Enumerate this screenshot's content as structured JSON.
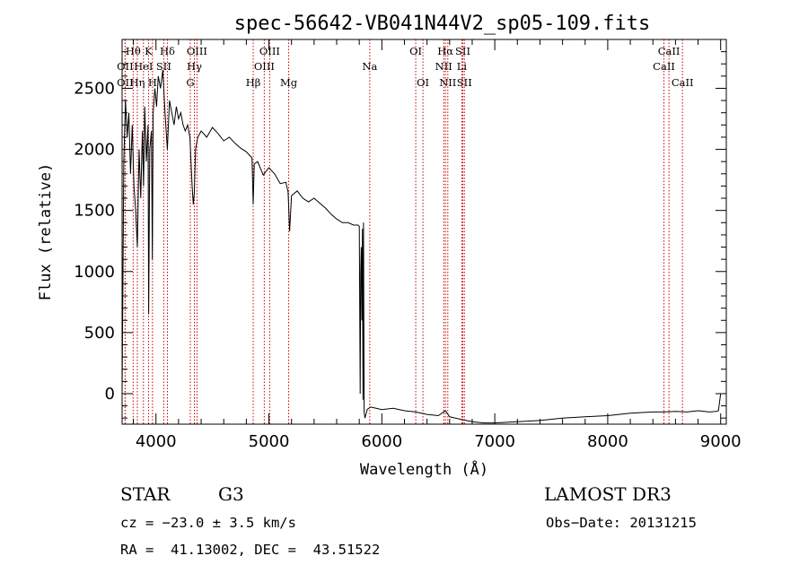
{
  "chart_data": {
    "type": "line",
    "title": "spec-56642-VB041N44V2_sp05-109.fits",
    "xlabel": "Wavelength (Å)",
    "ylabel": "Flux (relative)",
    "xlim": [
      3700,
      9050
    ],
    "ylim": [
      -250,
      2900
    ],
    "xticks": [
      4000,
      5000,
      6000,
      7000,
      8000,
      9000
    ],
    "yticks": [
      0,
      500,
      1000,
      1500,
      2000,
      2500
    ],
    "series": [
      {
        "name": "flux",
        "color": "#000000",
        "x": [
          3700,
          3715,
          3730,
          3745,
          3760,
          3775,
          3790,
          3805,
          3820,
          3835,
          3850,
          3865,
          3880,
          3890,
          3900,
          3915,
          3930,
          3935,
          3945,
          3960,
          3968,
          3975,
          3990,
          4005,
          4020,
          4040,
          4060,
          4080,
          4101,
          4120,
          4140,
          4160,
          4180,
          4200,
          4220,
          4240,
          4260,
          4280,
          4300,
          4320,
          4330,
          4340,
          4350,
          4370,
          4400,
          4450,
          4500,
          4550,
          4600,
          4650,
          4700,
          4750,
          4800,
          4850,
          4861,
          4870,
          4900,
          4950,
          5000,
          5050,
          5100,
          5150,
          5170,
          5183,
          5200,
          5250,
          5300,
          5350,
          5400,
          5450,
          5500,
          5550,
          5600,
          5650,
          5700,
          5750,
          5790,
          5800,
          5808,
          5813,
          5818,
          5823,
          5828,
          5833,
          5838,
          5843,
          5850,
          5870,
          5900,
          5950,
          6000,
          6100,
          6200,
          6300,
          6400,
          6500,
          6563,
          6600,
          6700,
          6800,
          6900,
          7000,
          7200,
          7400,
          7600,
          7800,
          8000,
          8200,
          8400,
          8500,
          8600,
          8700,
          8800,
          8900,
          8960,
          8980,
          9000
        ],
        "y": [
          0,
          1900,
          2400,
          2100,
          2300,
          1800,
          2200,
          1700,
          1500,
          1200,
          2000,
          1600,
          2150,
          1700,
          2350,
          1900,
          2200,
          650,
          2000,
          2150,
          1100,
          2300,
          2500,
          2350,
          2600,
          2500,
          2650,
          2300,
          2000,
          2400,
          2300,
          2200,
          2350,
          2250,
          2300,
          2200,
          2150,
          2200,
          2100,
          1700,
          1550,
          1650,
          2000,
          2100,
          2150,
          2100,
          2180,
          2130,
          2070,
          2100,
          2050,
          2010,
          1980,
          1930,
          1550,
          1880,
          1900,
          1790,
          1850,
          1800,
          1720,
          1730,
          1650,
          1330,
          1620,
          1660,
          1600,
          1570,
          1600,
          1560,
          1520,
          1470,
          1430,
          1400,
          1400,
          1380,
          1380,
          1370,
          0,
          1000,
          1200,
          600,
          1350,
          -50,
          1400,
          -150,
          -200,
          -130,
          -110,
          -120,
          -130,
          -120,
          -140,
          -150,
          -170,
          -180,
          -140,
          -190,
          -210,
          -230,
          -240,
          -240,
          -230,
          -220,
          -200,
          -190,
          -180,
          -160,
          -150,
          -150,
          -145,
          -150,
          -140,
          -150,
          -145,
          -140,
          0
        ]
      }
    ],
    "spectral_lines": [
      {
        "label": "Hθ",
        "wl": 3798,
        "row": 0
      },
      {
        "label": "OII",
        "wl": 3727,
        "row": 1
      },
      {
        "label": "Hη",
        "wl": 3835,
        "row": 2
      },
      {
        "label": "OII",
        "wl": 3727,
        "row": 2
      },
      {
        "label": "HeI",
        "wl": 3889,
        "row": 1
      },
      {
        "label": "K",
        "wl": 3934,
        "row": 0
      },
      {
        "label": "SII",
        "wl": 4069,
        "row": 1
      },
      {
        "label": "H",
        "wl": 3969,
        "row": 2
      },
      {
        "label": "Hδ",
        "wl": 4101,
        "row": 0
      },
      {
        "label": "OIII",
        "wl": 4363,
        "row": 0
      },
      {
        "label": "Hγ",
        "wl": 4340,
        "row": 1
      },
      {
        "label": "G",
        "wl": 4304,
        "row": 2
      },
      {
        "label": "OIII",
        "wl": 5007,
        "row": 0
      },
      {
        "label": "OIII",
        "wl": 4959,
        "row": 1
      },
      {
        "label": "Hβ",
        "wl": 4861,
        "row": 2
      },
      {
        "label": "Mg",
        "wl": 5175,
        "row": 2
      },
      {
        "label": "Na",
        "wl": 5893,
        "row": 1
      },
      {
        "label": "OI",
        "wl": 6300,
        "row": 0
      },
      {
        "label": "OI",
        "wl": 6364,
        "row": 2
      },
      {
        "label": "Hα",
        "wl": 6563,
        "row": 0
      },
      {
        "label": "NII",
        "wl": 6548,
        "row": 1
      },
      {
        "label": "NII",
        "wl": 6584,
        "row": 2
      },
      {
        "label": "SII",
        "wl": 6717,
        "row": 0
      },
      {
        "label": "Li",
        "wl": 6708,
        "row": 1
      },
      {
        "label": "SII",
        "wl": 6731,
        "row": 2
      },
      {
        "label": "CaII",
        "wl": 8542,
        "row": 0
      },
      {
        "label": "CaII",
        "wl": 8498,
        "row": 1
      },
      {
        "label": "CaII",
        "wl": 8662,
        "row": 2
      }
    ],
    "line_color": "#cc0000"
  },
  "info": {
    "class_label": "STAR",
    "subclass": "G3",
    "survey": "LAMOST DR3",
    "cz": "cz = −23.0 ± 3.5 km/s",
    "obs_date": "Obs−Date: 20131215",
    "radec": "RA =  41.13002, DEC =  43.51522"
  }
}
